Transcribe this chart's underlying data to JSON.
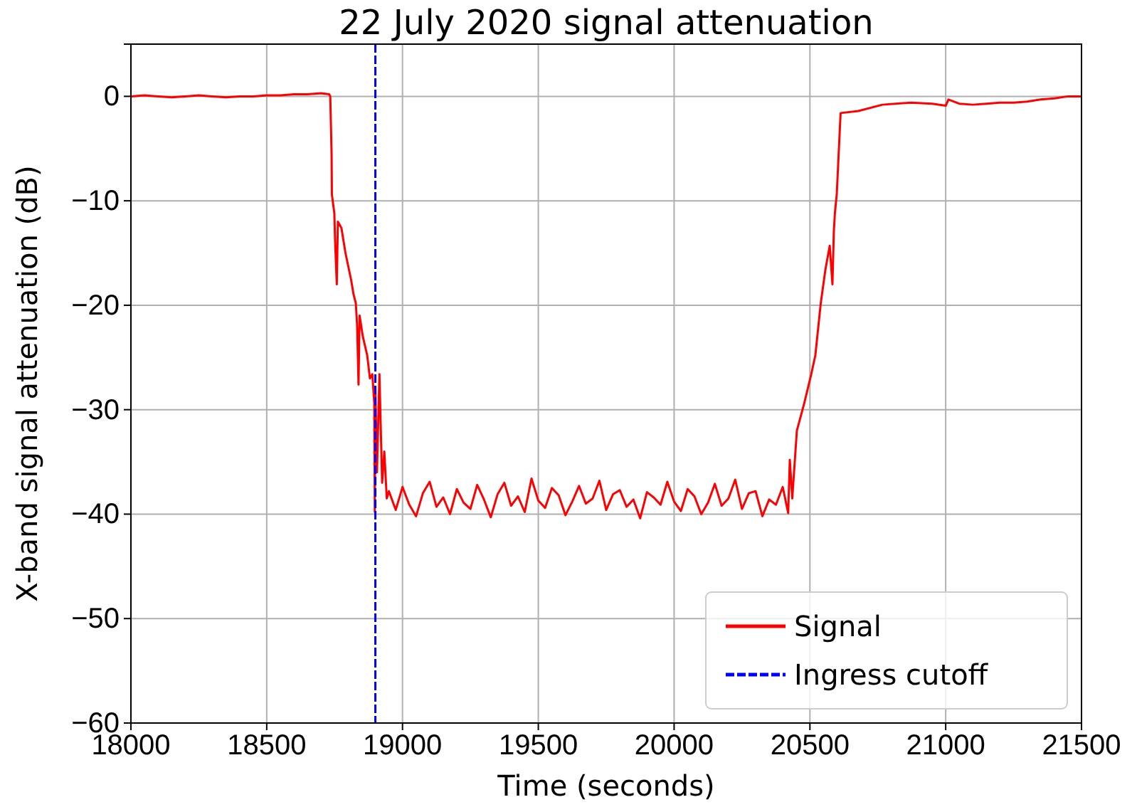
{
  "chart_data": {
    "type": "line",
    "title": "22 July 2020 signal attenuation",
    "xlabel": "Time (seconds)",
    "ylabel": "X-band signal attenuation (dB)",
    "xlim": [
      18000,
      21500
    ],
    "xticks": [
      18000,
      18500,
      19000,
      19500,
      20000,
      20500,
      21000,
      21500
    ],
    "ylim": [
      -60,
      5
    ],
    "yticks": [
      -60,
      -50,
      -40,
      -30,
      -20,
      -10,
      0
    ],
    "grid": true,
    "legend": "bottom right",
    "line_style": "solid",
    "marker": "none",
    "series": [
      {
        "name": "Signal",
        "color": "#ff0000",
        "x": [
          18000,
          18050,
          18100,
          18150,
          18200,
          18250,
          18300,
          18350,
          18400,
          18450,
          18500,
          18550,
          18600,
          18650,
          18700,
          18730,
          18734,
          18739,
          18740,
          18749,
          18752,
          18758,
          18762,
          18775,
          18790,
          18811,
          18820,
          18828,
          18833,
          18838,
          18842,
          18854,
          18870,
          18880,
          18889,
          18896,
          18898,
          18900,
          18906,
          18915,
          18925,
          18933,
          18942,
          18950,
          18975,
          19000,
          19025,
          19050,
          19075,
          19100,
          19125,
          19150,
          19175,
          19200,
          19225,
          19250,
          19275,
          19300,
          19325,
          19350,
          19375,
          19400,
          19425,
          19450,
          19475,
          19500,
          19525,
          19550,
          19575,
          19600,
          19625,
          19650,
          19675,
          19700,
          19725,
          19750,
          19775,
          19800,
          19825,
          19850,
          19875,
          19900,
          19925,
          19950,
          19975,
          20000,
          20025,
          20050,
          20075,
          20100,
          20125,
          20150,
          20175,
          20200,
          20225,
          20250,
          20275,
          20300,
          20325,
          20350,
          20375,
          20400,
          20420,
          20426,
          20435,
          20452,
          20479,
          20505,
          20520,
          20540,
          20557,
          20573,
          20583,
          20588,
          20592,
          20599,
          20613,
          20678,
          20767,
          20872,
          20950,
          21000,
          21010,
          21050,
          21100,
          21150,
          21200,
          21250,
          21300,
          21350,
          21400,
          21450,
          21500
        ],
        "values": [
          0,
          0.1,
          0,
          -0.1,
          0,
          0.1,
          0,
          -0.1,
          0,
          0,
          0.1,
          0.1,
          0.2,
          0.2,
          0.3,
          0.2,
          0,
          -5.7,
          -9.4,
          -11.2,
          -14,
          -18,
          -12,
          -12.6,
          -15,
          -17.6,
          -19,
          -19.8,
          -22,
          -27.6,
          -21,
          -23,
          -24.8,
          -27,
          -26.6,
          -29.4,
          -39.8,
          -28,
          -36,
          -26.6,
          -37,
          -34,
          -38.5,
          -37.8,
          -39.6,
          -37.4,
          -39.1,
          -40.2,
          -38,
          -36.9,
          -39.3,
          -38.4,
          -40,
          -37.6,
          -38.9,
          -39.5,
          -37.2,
          -38.6,
          -40.3,
          -38.1,
          -37,
          -39.2,
          -38.3,
          -39.8,
          -36.6,
          -38.7,
          -39.4,
          -37.5,
          -38.2,
          -40.1,
          -38.8,
          -37.3,
          -39,
          -38.5,
          -36.8,
          -39.6,
          -38.1,
          -37.7,
          -39.3,
          -38.6,
          -40.4,
          -37.9,
          -38.4,
          -39.1,
          -36.9,
          -38.8,
          -39.7,
          -37.6,
          -38.3,
          -40,
          -38.9,
          -37.1,
          -39.2,
          -38.5,
          -36.7,
          -39.5,
          -38,
          -37.8,
          -40.2,
          -38.6,
          -39.1,
          -37.4,
          -39.9,
          -34.8,
          -38.5,
          -32,
          -29.4,
          -26.6,
          -24.8,
          -19.8,
          -16.6,
          -14.3,
          -18,
          -13,
          -11.2,
          -9.3,
          -1.6,
          -1.4,
          -0.8,
          -0.6,
          -0.7,
          -0.9,
          -0.3,
          -0.7,
          -0.8,
          -0.7,
          -0.6,
          -0.6,
          -0.5,
          -0.3,
          -0.2,
          0,
          0
        ]
      },
      {
        "name": "Ingress cutoff",
        "color": "#0000ff",
        "line_style": "dashed",
        "x": [
          18900,
          18900
        ],
        "values": [
          5,
          -60
        ]
      }
    ]
  }
}
